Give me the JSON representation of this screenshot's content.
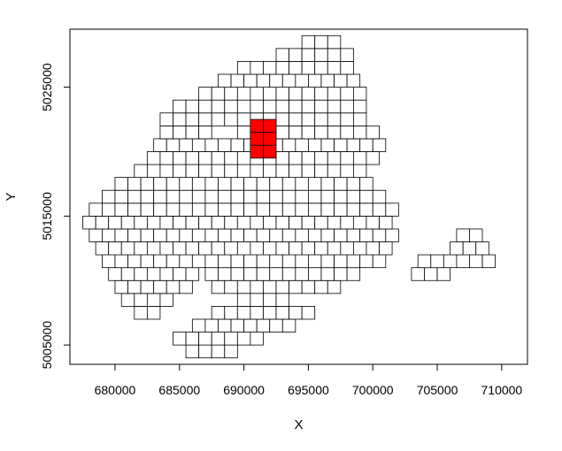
{
  "chart_data": {
    "type": "polygon-map",
    "xlabel": "X",
    "ylabel": "Y",
    "xlim": [
      676500,
      712000
    ],
    "ylim": [
      5003500,
      5029500
    ],
    "x_ticks": [
      680000,
      685000,
      690000,
      695000,
      700000,
      705000,
      710000
    ],
    "x_tick_labels": [
      "680000",
      "685000",
      "690000",
      "695000",
      "700000",
      "705000",
      "710000"
    ],
    "y_ticks": [
      5005000,
      5015000,
      5025000
    ],
    "y_tick_labels": [
      "5005000",
      "5015000",
      "5025000"
    ],
    "cell_size": 1000,
    "colors": {
      "fill": "#ffffff",
      "stroke": "#000000",
      "highlight": "#ff0000"
    },
    "highlighted_cells": [
      [
        691000,
        5020000
      ],
      [
        692000,
        5020000
      ],
      [
        691000,
        5021000
      ],
      [
        692000,
        5021000
      ],
      [
        691000,
        5022000
      ],
      [
        692000,
        5022000
      ]
    ],
    "regions": {
      "main": [
        {
          "y": 5007500,
          "x_from": 682000,
          "x_to": 683500
        },
        {
          "y": 5008500,
          "x_from": 681000,
          "x_to": 684500
        },
        {
          "y": 5009500,
          "x_from": 680500,
          "x_to": 685500,
          "also": [
            [
              688000,
              697500
            ]
          ]
        },
        {
          "y": 5010500,
          "x_from": 680000,
          "x_to": 686000,
          "also": [
            [
              687500,
              699000
            ]
          ]
        },
        {
          "y": 5011500,
          "x_from": 679500,
          "x_to": 700500
        },
        {
          "y": 5012500,
          "x_from": 679000,
          "x_to": 701000
        },
        {
          "y": 5013500,
          "x_from": 678500,
          "x_to": 701500
        },
        {
          "y": 5014500,
          "x_from": 678000,
          "x_to": 701500
        },
        {
          "y": 5015500,
          "x_from": 678500,
          "x_to": 701500
        },
        {
          "y": 5016500,
          "x_from": 679500,
          "x_to": 700500
        },
        {
          "y": 5017500,
          "x_from": 680500,
          "x_to": 699500
        },
        {
          "y": 5018500,
          "x_from": 682000,
          "x_to": 699500
        },
        {
          "y": 5019500,
          "x_from": 683000,
          "x_to": 700000
        },
        {
          "y": 5020500,
          "x_from": 683500,
          "x_to": 700500
        },
        {
          "y": 5021500,
          "x_from": 684000,
          "x_to": 687500,
          "also": [
            [
              690000,
              700500
            ]
          ]
        },
        {
          "y": 5022500,
          "x_from": 684000,
          "x_to": 699500
        },
        {
          "y": 5023500,
          "x_from": 685000,
          "x_to": 699500
        },
        {
          "y": 5024500,
          "x_from": 687000,
          "x_to": 699000
        },
        {
          "y": 5025500,
          "x_from": 688500,
          "x_to": 699000
        },
        {
          "y": 5026500,
          "x_from": 690000,
          "x_to": 698500
        },
        {
          "y": 5027500,
          "x_from": 693000,
          "x_to": 698000
        },
        {
          "y": 5028500,
          "x_from": 695000,
          "x_to": 697500
        }
      ],
      "south": [
        {
          "y": 5004500,
          "x_from": 686000,
          "x_to": 689000
        },
        {
          "y": 5005500,
          "x_from": 685000,
          "x_to": 691500
        },
        {
          "y": 5006500,
          "x_from": 686500,
          "x_to": 693500
        },
        {
          "y": 5007500,
          "x_from": 688000,
          "x_to": 695000
        },
        {
          "y": 5008500,
          "x_from": 690000,
          "x_to": 693000
        }
      ],
      "east1": [
        {
          "y": 5010500,
          "x_from": 703500,
          "x_to": 705500
        },
        {
          "y": 5011500,
          "x_from": 704000,
          "x_to": 706500
        }
      ],
      "east2": [
        {
          "y": 5011500,
          "x_from": 707000,
          "x_to": 709000
        },
        {
          "y": 5012500,
          "x_from": 706500,
          "x_to": 709000
        },
        {
          "y": 5013500,
          "x_from": 707000,
          "x_to": 708500
        }
      ]
    }
  }
}
